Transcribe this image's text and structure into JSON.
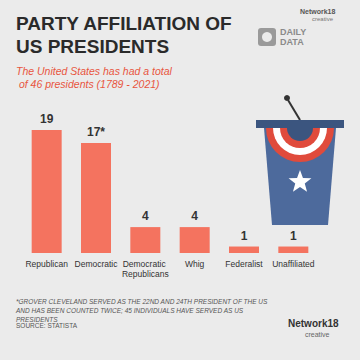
{
  "chart_data": {
    "type": "bar",
    "title": "PARTY AFFILIATION OF US PRESIDENTS",
    "subtitle": "The United States has had a total of 46 presidents (1789 - 2021)",
    "categories": [
      "Republican",
      "Democratic",
      "Democratic Republicans",
      "Whig",
      "Federalist",
      "Unaffiliated"
    ],
    "values": [
      19,
      17,
      4,
      4,
      1,
      1
    ],
    "value_labels": [
      "19",
      "17*",
      "4",
      "4",
      "1",
      "1"
    ],
    "color": "#f4735f",
    "ylim": [
      0,
      19
    ],
    "grid": false,
    "data_labels": true,
    "tick_labels": "x",
    "annotations": [
      "*GROVER CLEVELAND SERVED AS THE 22ND AND 24TH PRESIDENT OF THE US AND HAS BEEN COUNTED TWICE; 45 INDIVIDUALS HAVE SERVED AS US PRESIDENTS",
      "SOURCE: STATISTA",
      "DAILY DATA",
      "Network18",
      "creative"
    ]
  }
}
